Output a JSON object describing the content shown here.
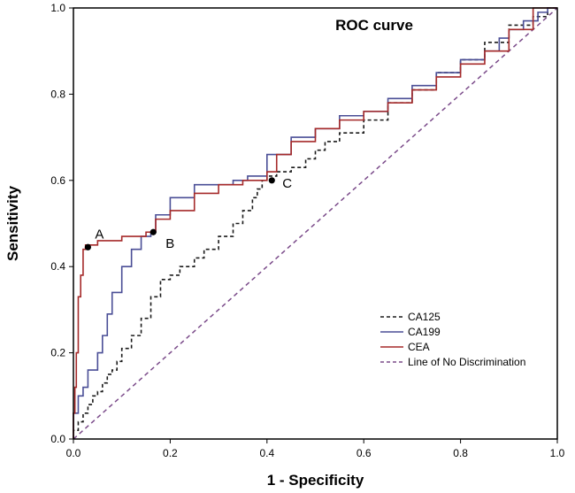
{
  "chart_data": {
    "type": "line",
    "title": "ROC curve",
    "xlabel": "1 - Specificity",
    "ylabel": "Sensitivity",
    "xlim": [
      0,
      1
    ],
    "ylim": [
      0,
      1
    ],
    "xticks": [
      0.0,
      0.2,
      0.4,
      0.6,
      0.8,
      1.0
    ],
    "yticks": [
      0.0,
      0.2,
      0.4,
      0.6,
      0.8,
      1.0
    ],
    "xtick_labels": [
      "0.0",
      "0.2",
      "0.4",
      "0.6",
      "0.8",
      "1.0"
    ],
    "ytick_labels": [
      "0.0",
      "0.2",
      "0.4",
      "0.6",
      "0.8",
      "1.0"
    ],
    "legend_position": "bottom-right",
    "series": [
      {
        "name": "CA125",
        "color": "#1a1a1a",
        "dash": "dashed",
        "x": [
          0,
          0.01,
          0.02,
          0.03,
          0.04,
          0.05,
          0.06,
          0.07,
          0.08,
          0.09,
          0.1,
          0.12,
          0.14,
          0.16,
          0.18,
          0.2,
          0.22,
          0.25,
          0.27,
          0.3,
          0.33,
          0.35,
          0.37,
          0.38,
          0.39,
          0.4,
          0.42,
          0.45,
          0.48,
          0.5,
          0.52,
          0.55,
          0.6,
          0.65,
          0.7,
          0.75,
          0.8,
          0.85,
          0.9,
          0.95,
          0.98,
          1.0
        ],
        "y": [
          0,
          0.02,
          0.04,
          0.06,
          0.08,
          0.1,
          0.11,
          0.13,
          0.15,
          0.16,
          0.18,
          0.21,
          0.24,
          0.28,
          0.33,
          0.37,
          0.38,
          0.4,
          0.42,
          0.44,
          0.47,
          0.5,
          0.53,
          0.56,
          0.58,
          0.6,
          0.61,
          0.62,
          0.63,
          0.65,
          0.67,
          0.69,
          0.71,
          0.74,
          0.78,
          0.81,
          0.85,
          0.88,
          0.92,
          0.96,
          0.98,
          1.0
        ]
      },
      {
        "name": "CA199",
        "color": "#4a4e96",
        "dash": "solid",
        "x": [
          0,
          0.01,
          0.02,
          0.03,
          0.05,
          0.06,
          0.07,
          0.08,
          0.1,
          0.12,
          0.14,
          0.16,
          0.17,
          0.2,
          0.25,
          0.3,
          0.33,
          0.36,
          0.4,
          0.45,
          0.5,
          0.55,
          0.6,
          0.65,
          0.7,
          0.75,
          0.8,
          0.85,
          0.88,
          0.9,
          0.93,
          0.96,
          0.98,
          1.0
        ],
        "y": [
          0,
          0.06,
          0.1,
          0.12,
          0.16,
          0.2,
          0.24,
          0.29,
          0.34,
          0.4,
          0.44,
          0.47,
          0.48,
          0.52,
          0.56,
          0.59,
          0.59,
          0.6,
          0.61,
          0.66,
          0.7,
          0.72,
          0.75,
          0.76,
          0.79,
          0.82,
          0.85,
          0.88,
          0.9,
          0.93,
          0.95,
          0.97,
          0.99,
          1.0
        ]
      },
      {
        "name": "CEA",
        "color": "#a52a2a",
        "dash": "solid",
        "x": [
          0,
          0.003,
          0.006,
          0.01,
          0.015,
          0.02,
          0.025,
          0.03,
          0.05,
          0.1,
          0.15,
          0.17,
          0.2,
          0.25,
          0.3,
          0.35,
          0.4,
          0.42,
          0.45,
          0.5,
          0.55,
          0.6,
          0.65,
          0.7,
          0.75,
          0.8,
          0.85,
          0.9,
          0.95,
          1.0
        ],
        "y": [
          0,
          0.06,
          0.12,
          0.2,
          0.33,
          0.38,
          0.44,
          0.45,
          0.45,
          0.46,
          0.47,
          0.48,
          0.51,
          0.53,
          0.57,
          0.59,
          0.6,
          0.62,
          0.66,
          0.69,
          0.72,
          0.74,
          0.76,
          0.78,
          0.81,
          0.84,
          0.87,
          0.9,
          0.95,
          1.0
        ]
      },
      {
        "name": "Line of No Discrimination",
        "color": "#7b4b8a",
        "dash": "dashed",
        "x": [
          0,
          1
        ],
        "y": [
          0,
          1
        ]
      }
    ],
    "annotations": [
      {
        "label": "A",
        "x": 0.03,
        "y": 0.445
      },
      {
        "label": "B",
        "x": 0.165,
        "y": 0.48
      },
      {
        "label": "C",
        "x": 0.41,
        "y": 0.6
      }
    ]
  }
}
